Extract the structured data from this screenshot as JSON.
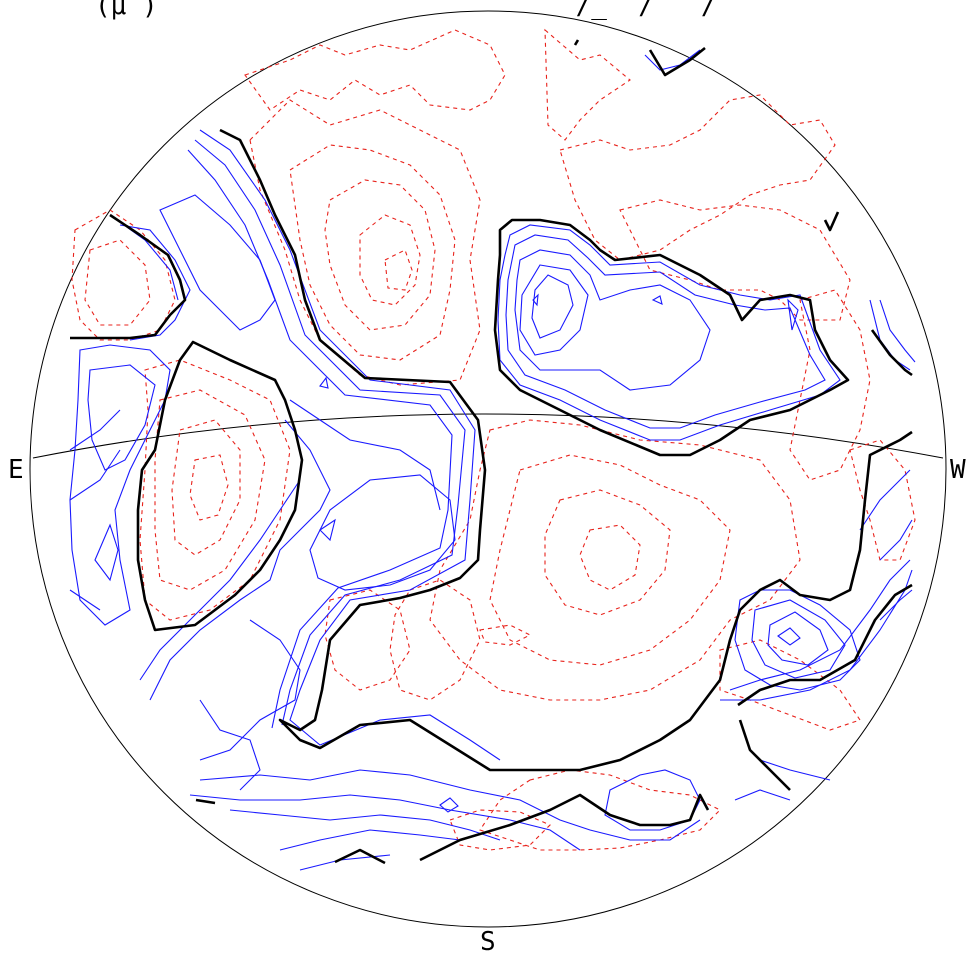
{
  "header": {
    "left_fragment": "(μ′)",
    "right_fragment": "′/_′′/′′′/′′′′′"
  },
  "compass": {
    "east": "E",
    "west": "W",
    "south": "S"
  },
  "colors": {
    "positive_contours": "#1a1aff",
    "negative_contours": "#e8231c",
    "zero_contour": "#000000",
    "outline": "#000000",
    "background": "#ffffff"
  },
  "legend_hint": {
    "positive": "solid blue",
    "negative": "dashed red",
    "zero": "thick black"
  }
}
